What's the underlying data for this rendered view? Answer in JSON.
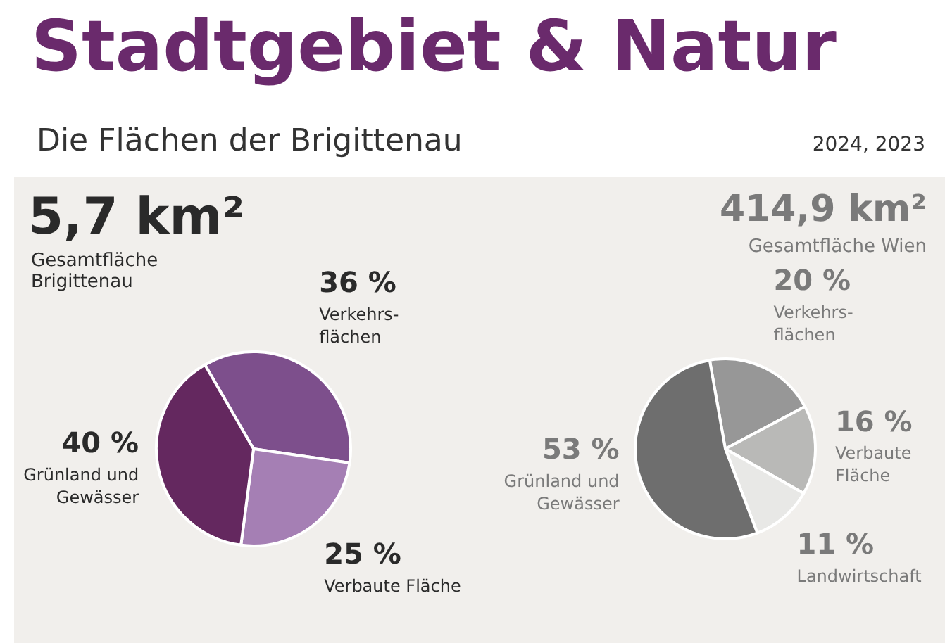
{
  "chart_data": [
    {
      "type": "other",
      "title": "Stadtgebiet & Natur",
      "subtitle": "Die Flächen der Brigittenau",
      "annotations": [
        "2024, 2023"
      ]
    },
    {
      "type": "pie",
      "title": "5,7 km²",
      "subtitle": "Gesamtfläche Brigittenau",
      "categories": [
        "Verkehrs-\nflächen",
        "Verbaute Fläche",
        "Grünland und\nGewässer"
      ],
      "values": [
        36,
        25,
        40
      ],
      "value_labels": [
        "36 %",
        "25 %",
        "40 %"
      ],
      "colors": [
        "#7d4f8c",
        "#a57fb4",
        "#64285f"
      ]
    },
    {
      "type": "pie",
      "title": "414,9 km²",
      "subtitle": "Gesamtfläche Wien",
      "categories": [
        "Verkehrs-\nflächen",
        "Verbaute\nFläche",
        "Landwirtschaft",
        "Grünland und\nGewässer"
      ],
      "values": [
        20,
        16,
        11,
        53
      ],
      "value_labels": [
        "20 %",
        "16 %",
        "11 %",
        "53 %"
      ],
      "colors": [
        "#979797",
        "#b9b9b7",
        "#e8e8e6",
        "#6e6e6e"
      ]
    }
  ]
}
